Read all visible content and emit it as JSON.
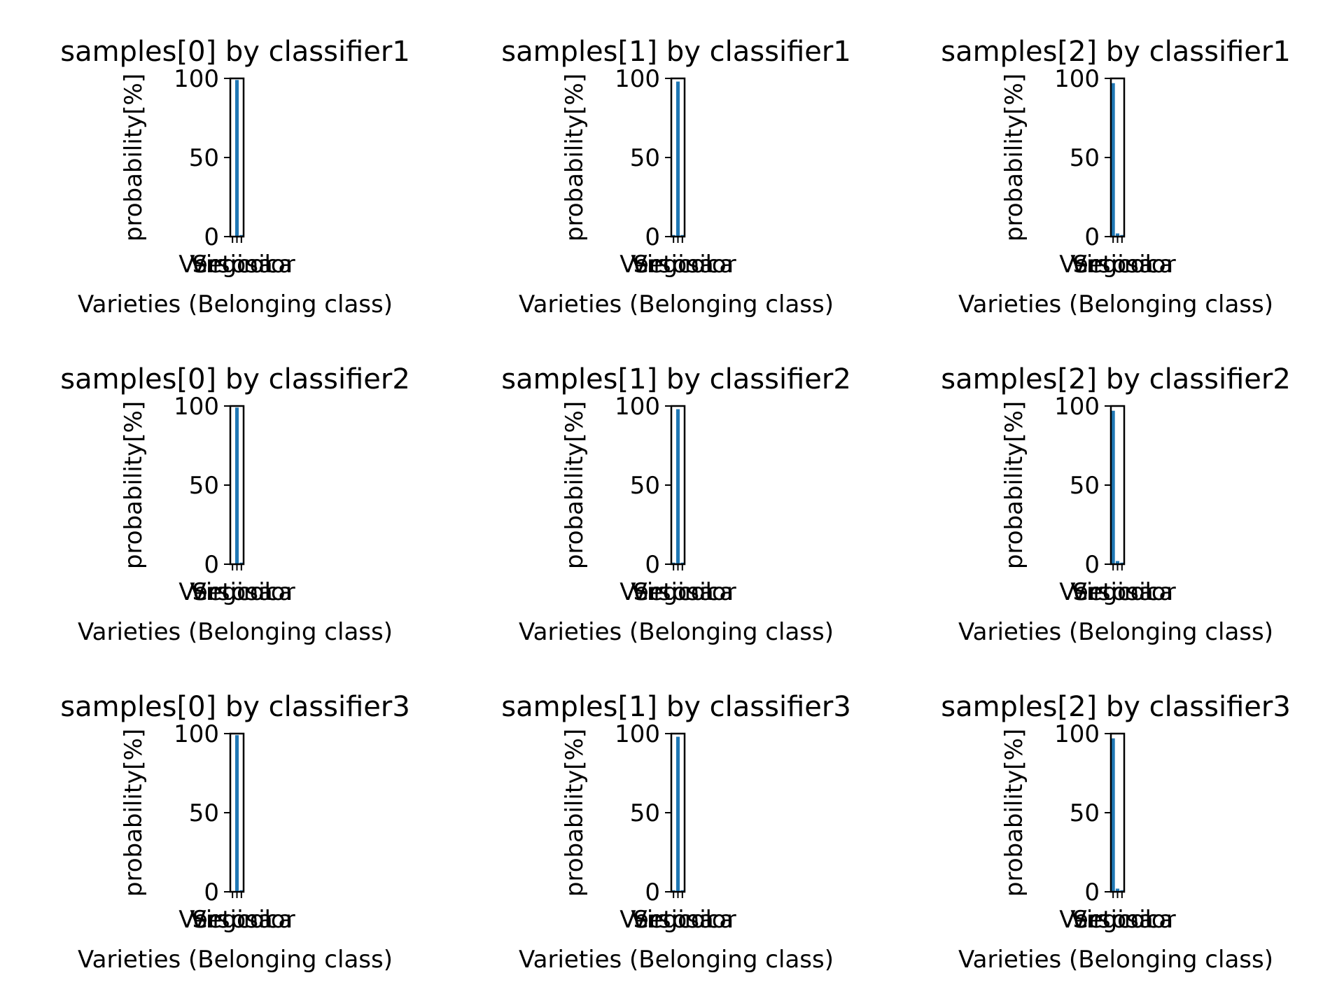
{
  "figure": {
    "background": "#ffffff",
    "bar_color": "#1f77b4",
    "axis_color": "#000000"
  },
  "chart_data": [
    {
      "type": "bar",
      "title": "samples[0] by classifier1",
      "categories": [
        "Setosa",
        "Versicolor",
        "Virginica"
      ],
      "values": [
        0,
        99,
        1
      ],
      "xlabel": "Varieties (Belonging class)",
      "ylabel": "probability[%]",
      "ylim": [
        0,
        100
      ],
      "yticks": [
        0,
        50,
        100
      ],
      "grid": false
    },
    {
      "type": "bar",
      "title": "samples[1] by classifier1",
      "categories": [
        "Setosa",
        "Versicolor",
        "Virginica"
      ],
      "values": [
        1,
        98,
        1
      ],
      "xlabel": "Varieties (Belonging class)",
      "ylabel": "probability[%]",
      "ylim": [
        0,
        100
      ],
      "yticks": [
        0,
        50,
        100
      ],
      "grid": false
    },
    {
      "type": "bar",
      "title": "samples[2] by classifier1",
      "categories": [
        "Setosa",
        "Versicolor",
        "Virginica"
      ],
      "values": [
        97,
        2,
        1
      ],
      "xlabel": "Varieties (Belonging class)",
      "ylabel": "probability[%]",
      "ylim": [
        0,
        100
      ],
      "yticks": [
        0,
        50,
        100
      ],
      "grid": false
    },
    {
      "type": "bar",
      "title": "samples[0] by classifier2",
      "categories": [
        "Setosa",
        "Versicolor",
        "Virginica"
      ],
      "values": [
        0,
        99,
        1
      ],
      "xlabel": "Varieties (Belonging class)",
      "ylabel": "probability[%]",
      "ylim": [
        0,
        100
      ],
      "yticks": [
        0,
        50,
        100
      ],
      "grid": false
    },
    {
      "type": "bar",
      "title": "samples[1] by classifier2",
      "categories": [
        "Setosa",
        "Versicolor",
        "Virginica"
      ],
      "values": [
        1,
        98,
        1
      ],
      "xlabel": "Varieties (Belonging class)",
      "ylabel": "probability[%]",
      "ylim": [
        0,
        100
      ],
      "yticks": [
        0,
        50,
        100
      ],
      "grid": false
    },
    {
      "type": "bar",
      "title": "samples[2] by classifier2",
      "categories": [
        "Setosa",
        "Versicolor",
        "Virginica"
      ],
      "values": [
        97,
        2,
        1
      ],
      "xlabel": "Varieties (Belonging class)",
      "ylabel": "probability[%]",
      "ylim": [
        0,
        100
      ],
      "yticks": [
        0,
        50,
        100
      ],
      "grid": false
    },
    {
      "type": "bar",
      "title": "samples[0] by classifier3",
      "categories": [
        "Setosa",
        "Versicolor",
        "Virginica"
      ],
      "values": [
        0,
        99,
        1
      ],
      "xlabel": "Varieties (Belonging class)",
      "ylabel": "probability[%]",
      "ylim": [
        0,
        100
      ],
      "yticks": [
        0,
        50,
        100
      ],
      "grid": false
    },
    {
      "type": "bar",
      "title": "samples[1] by classifier3",
      "categories": [
        "Setosa",
        "Versicolor",
        "Virginica"
      ],
      "values": [
        1,
        98,
        1
      ],
      "xlabel": "Varieties (Belonging class)",
      "ylabel": "probability[%]",
      "ylim": [
        0,
        100
      ],
      "yticks": [
        0,
        50,
        100
      ],
      "grid": false
    },
    {
      "type": "bar",
      "title": "samples[2] by classifier3",
      "categories": [
        "Setosa",
        "Versicolor",
        "Virginica"
      ],
      "values": [
        97,
        2,
        1
      ],
      "xlabel": "Varieties (Belonging class)",
      "ylabel": "probability[%]",
      "ylim": [
        0,
        100
      ],
      "yticks": [
        0,
        50,
        100
      ],
      "grid": false
    }
  ]
}
